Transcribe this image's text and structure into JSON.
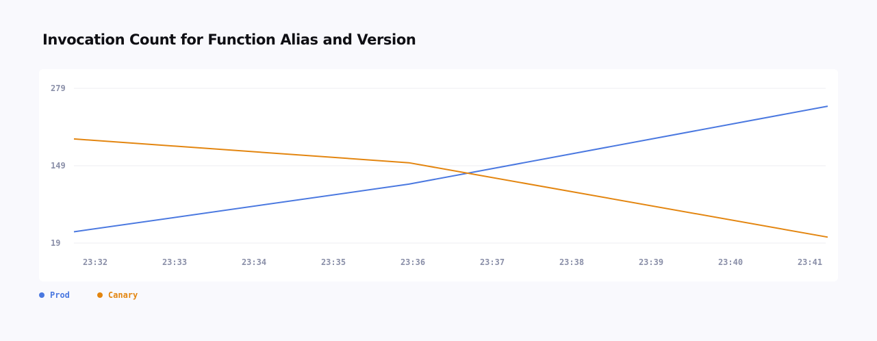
{
  "chart_data": {
    "type": "line",
    "title": "Invocation Count for Function Alias and Version",
    "x": [
      "23:32",
      "23:33",
      "23:34",
      "23:35",
      "23:36",
      "23:37",
      "23:38",
      "23:39",
      "23:40",
      "23:41"
    ],
    "y_ticks": [
      19,
      149,
      279
    ],
    "ylim": [
      19,
      279
    ],
    "grid": true,
    "legend_position": "bottom-left",
    "series": [
      {
        "name": "Prod",
        "color": "#4a78e0",
        "points": [
          [
            0,
            38
          ],
          [
            4,
            118
          ],
          [
            9,
            249
          ]
        ]
      },
      {
        "name": "Canary",
        "color": "#e3850f",
        "points": [
          [
            0,
            194
          ],
          [
            4,
            154
          ],
          [
            9,
            29
          ]
        ]
      }
    ]
  }
}
